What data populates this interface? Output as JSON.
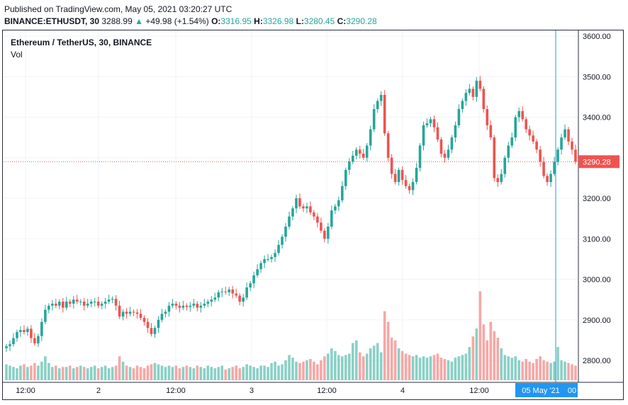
{
  "header": {
    "published": "Published on TradingView.com, May 05, 2021 03:20:27 UTC",
    "symbol": "BINANCE:ETHUSDT, 30",
    "last": "3288.99",
    "change_arrow": "▲",
    "change": "+49.98 (+1.54%)",
    "o_label": "O:",
    "o": "3316.95",
    "h_label": "H:",
    "h": "3326.98",
    "l_label": "L:",
    "l": "3280.45",
    "c_label": "C:",
    "c": "3290.28"
  },
  "legend": {
    "title": "Ethereum / TetherUS, 30, BINANCE",
    "vol_label": "Vol"
  },
  "colors": {
    "up": "#26a69a",
    "down": "#ef5350",
    "vol_up": "#8ad0c6",
    "vol_down": "#f5a8a6",
    "cursor": "#2196f3"
  },
  "chart_data": {
    "type": "candlestick",
    "title": "Ethereum / TetherUS, 30, BINANCE",
    "ylim": [
      2750,
      3620
    ],
    "y_ticks": [
      "3600.00",
      "3500.00",
      "3400.00",
      "3300.00",
      "3200.00",
      "3100.00",
      "3000.00",
      "2900.00",
      "2800.00"
    ],
    "x_ticks": [
      "12:00",
      "2",
      "12:00",
      "3",
      "12:00",
      "4",
      "12:00"
    ],
    "last_price_label": "3290.28",
    "last_price": 3290.28,
    "cursor_label": "05 May '21",
    "cursor_label_tail": "00",
    "closes": [
      2835,
      2840,
      2855,
      2870,
      2875,
      2870,
      2878,
      2855,
      2842,
      2860,
      2895,
      2925,
      2935,
      2940,
      2935,
      2945,
      2930,
      2945,
      2940,
      2950,
      2945,
      2945,
      2935,
      2940,
      2945,
      2945,
      2935,
      2940,
      2945,
      2950,
      2952,
      2935,
      2908,
      2920,
      2915,
      2920,
      2918,
      2915,
      2905,
      2895,
      2880,
      2865,
      2880,
      2900,
      2915,
      2920,
      2935,
      2940,
      2935,
      2930,
      2935,
      2932,
      2935,
      2940,
      2930,
      2935,
      2940,
      2945,
      2950,
      2955,
      2968,
      2970,
      2968,
      2975,
      2965,
      2960,
      2945,
      2955,
      2980,
      2990,
      3010,
      3025,
      3040,
      3050,
      3050,
      3055,
      3065,
      3085,
      3105,
      3130,
      3155,
      3175,
      3200,
      3180,
      3175,
      3180,
      3165,
      3155,
      3140,
      3120,
      3100,
      3130,
      3170,
      3180,
      3195,
      3230,
      3270,
      3290,
      3305,
      3320,
      3310,
      3300,
      3330,
      3370,
      3420,
      3440,
      3455,
      3360,
      3300,
      3260,
      3240,
      3270,
      3245,
      3230,
      3220,
      3240,
      3275,
      3330,
      3380,
      3385,
      3395,
      3375,
      3345,
      3310,
      3300,
      3320,
      3350,
      3380,
      3420,
      3440,
      3460,
      3470,
      3450,
      3490,
      3470,
      3420,
      3380,
      3350,
      3250,
      3240,
      3260,
      3300,
      3330,
      3350,
      3400,
      3415,
      3395,
      3370,
      3355,
      3340,
      3320,
      3290,
      3255,
      3240,
      3260,
      3290,
      3320,
      3350,
      3370,
      3340,
      3320,
      3290
    ],
    "volumes": [
      60,
      55,
      50,
      45,
      55,
      60,
      50,
      55,
      65,
      55,
      70,
      90,
      65,
      50,
      55,
      45,
      50,
      50,
      55,
      45,
      50,
      55,
      50,
      45,
      50,
      55,
      45,
      50,
      55,
      45,
      50,
      55,
      90,
      70,
      55,
      50,
      45,
      55,
      50,
      45,
      55,
      60,
      65,
      60,
      55,
      50,
      55,
      50,
      55,
      45,
      50,
      55,
      50,
      45,
      55,
      50,
      45,
      55,
      50,
      45,
      50,
      55,
      40,
      45,
      50,
      55,
      45,
      50,
      60,
      55,
      50,
      45,
      55,
      55,
      50,
      65,
      70,
      55,
      60,
      75,
      95,
      85,
      70,
      65,
      70,
      75,
      80,
      70,
      60,
      75,
      90,
      100,
      120,
      110,
      95,
      90,
      95,
      100,
      140,
      150,
      105,
      90,
      100,
      120,
      130,
      140,
      105,
      260,
      220,
      160,
      150,
      120,
      110,
      100,
      95,
      90,
      95,
      85,
      90,
      85,
      90,
      95,
      100,
      85,
      80,
      75,
      70,
      85,
      90,
      95,
      100,
      125,
      165,
      195,
      335,
      210,
      150,
      220,
      185,
      160,
      120,
      95,
      90,
      85,
      90,
      75,
      70,
      80,
      70,
      65,
      80,
      90,
      75,
      70,
      65,
      70,
      125,
      75,
      70,
      65,
      60,
      55
    ]
  }
}
